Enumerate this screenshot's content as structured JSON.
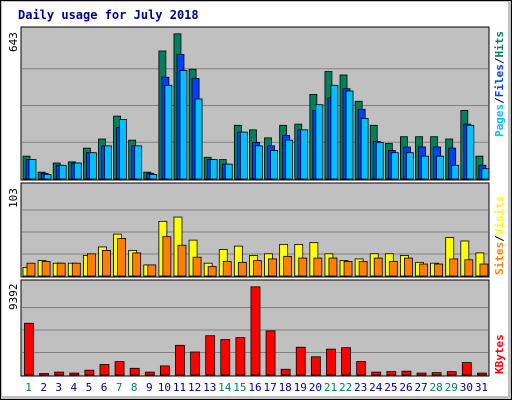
{
  "title": "Daily usage for July 2018",
  "colors": {
    "hits": "#00805c",
    "files": "#0040ff",
    "pages": "#00c0ff",
    "visits": "#ffff00",
    "sites": "#ff8000",
    "kbytes": "#ff0000",
    "background": "#c0c0c0",
    "weekend_label": "#00805c",
    "weekday_label": "#00008b"
  },
  "right_labels": {
    "top": [
      "Pages",
      "Files",
      "Hits"
    ],
    "middle": [
      "Sites",
      "Visits"
    ],
    "bottom": [
      "KBytes"
    ],
    "separator": "/"
  },
  "chart_data": [
    {
      "type": "bar",
      "panel": "top",
      "ymax_label": "643",
      "ylim": [
        0,
        643
      ],
      "categories": [
        "1",
        "2",
        "3",
        "4",
        "5",
        "6",
        "7",
        "8",
        "9",
        "10",
        "11",
        "12",
        "13",
        "14",
        "15",
        "16",
        "17",
        "18",
        "19",
        "20",
        "21",
        "22",
        "23",
        "24",
        "25",
        "26",
        "27",
        "28",
        "29",
        "30",
        "31"
      ],
      "series": [
        {
          "name": "Hits",
          "values": [
            100,
            30,
            70,
            75,
            135,
            175,
            275,
            170,
            30,
            560,
            635,
            480,
            95,
            85,
            235,
            215,
            180,
            235,
            240,
            370,
            470,
            455,
            340,
            235,
            155,
            185,
            185,
            185,
            175,
            300,
            100
          ]
        },
        {
          "name": "Files",
          "values": [
            85,
            25,
            60,
            70,
            115,
            145,
            225,
            145,
            25,
            445,
            545,
            440,
            85,
            65,
            205,
            160,
            145,
            190,
            215,
            300,
            355,
            395,
            305,
            165,
            125,
            140,
            140,
            140,
            135,
            240,
            60
          ]
        },
        {
          "name": "Pages",
          "values": [
            85,
            20,
            60,
            70,
            115,
            145,
            260,
            145,
            20,
            410,
            475,
            350,
            85,
            65,
            205,
            145,
            125,
            170,
            215,
            325,
            410,
            385,
            265,
            160,
            115,
            115,
            100,
            100,
            60,
            235,
            45
          ]
        }
      ]
    },
    {
      "type": "bar",
      "panel": "middle",
      "ymax_label": "103",
      "ylim": [
        0,
        103
      ],
      "categories": [
        "1",
        "2",
        "3",
        "4",
        "5",
        "6",
        "7",
        "8",
        "9",
        "10",
        "11",
        "12",
        "13",
        "14",
        "15",
        "16",
        "17",
        "18",
        "19",
        "20",
        "21",
        "22",
        "23",
        "24",
        "25",
        "26",
        "27",
        "28",
        "29",
        "30",
        "31"
      ],
      "series": [
        {
          "name": "Visits",
          "values": [
            10,
            18,
            15,
            15,
            24,
            34,
            49,
            30,
            13,
            64,
            69,
            42,
            15,
            31,
            35,
            24,
            26,
            37,
            37,
            39,
            26,
            18,
            20,
            26,
            26,
            24,
            16,
            15,
            45,
            41,
            27
          ]
        },
        {
          "name": "Sites",
          "values": [
            15,
            17,
            15,
            15,
            26,
            30,
            44,
            27,
            13,
            46,
            36,
            22,
            11,
            17,
            16,
            18,
            20,
            23,
            21,
            21,
            21,
            17,
            17,
            21,
            17,
            21,
            14,
            14,
            20,
            19,
            14
          ]
        }
      ]
    },
    {
      "type": "bar",
      "panel": "bottom",
      "ymax_label": "9392",
      "ylim": [
        0,
        9392
      ],
      "categories": [
        "1",
        "2",
        "3",
        "4",
        "5",
        "6",
        "7",
        "8",
        "9",
        "10",
        "11",
        "12",
        "13",
        "14",
        "15",
        "16",
        "17",
        "18",
        "19",
        "20",
        "21",
        "22",
        "23",
        "24",
        "25",
        "26",
        "27",
        "28",
        "29",
        "30",
        "31"
      ],
      "series": [
        {
          "name": "KBytes",
          "values": [
            5400,
            150,
            300,
            200,
            500,
            1100,
            1400,
            700,
            300,
            950,
            3100,
            2400,
            4100,
            3700,
            3900,
            9200,
            4600,
            600,
            2900,
            1900,
            2700,
            2850,
            1400,
            300,
            350,
            400,
            200,
            250,
            350,
            1300,
            200
          ]
        }
      ]
    }
  ],
  "x_labels": [
    "1",
    "2",
    "3",
    "4",
    "5",
    "6",
    "7",
    "8",
    "9",
    "10",
    "11",
    "12",
    "13",
    "14",
    "15",
    "16",
    "17",
    "18",
    "19",
    "20",
    "21",
    "22",
    "23",
    "24",
    "25",
    "26",
    "27",
    "28",
    "29",
    "30",
    "31"
  ],
  "weekend_days": [
    "1",
    "7",
    "8",
    "14",
    "15",
    "21",
    "22",
    "28",
    "29"
  ]
}
